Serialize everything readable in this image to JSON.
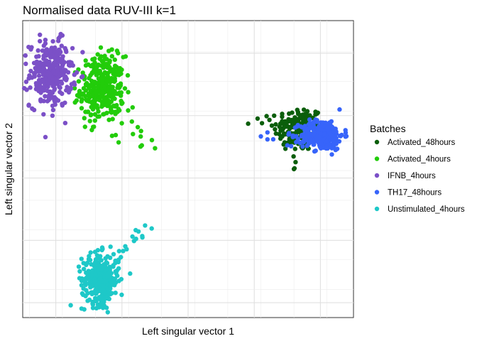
{
  "chart_data": {
    "type": "scatter",
    "title": "Normalised data RUV-III k=1",
    "xlabel": "Left singular vector 1",
    "ylabel": "Left singular vector 2",
    "xlim": [
      0,
      100
    ],
    "ylim": [
      0,
      100
    ],
    "grid": true,
    "ticks_labeled": false,
    "legend": {
      "title": "Batches",
      "placement": "right",
      "entries": [
        "Activated_48hours",
        "Activated_4hours",
        "IFNB_4hours",
        "TH17_48hours",
        "Unstimulated_4hours"
      ]
    },
    "series": [
      {
        "name": "Activated_48hours",
        "color": "#0B5E0B",
        "n": 160,
        "center": [
          83.5,
          63.5
        ],
        "spread": [
          3.8,
          3.8
        ],
        "tail": [
          [
            71,
            67
          ],
          [
            82,
            50
          ],
          [
            76,
            68
          ],
          [
            85,
            70
          ]
        ]
      },
      {
        "name": "Activated_4hours",
        "color": "#22CC0A",
        "n": 320,
        "center": [
          24,
          77
        ],
        "spread": [
          3.3,
          5.5
        ],
        "tail": [
          [
            36,
            58
          ],
          [
            40,
            57
          ],
          [
            27,
            88
          ],
          [
            33,
            66
          ],
          [
            29,
            59
          ]
        ]
      },
      {
        "name": "IFNB_4hours",
        "color": "#7B50C7",
        "n": 280,
        "center": [
          8.5,
          82
        ],
        "spread": [
          3.2,
          5.5
        ],
        "tail": [
          [
            12,
            95
          ],
          [
            14,
            85
          ],
          [
            9,
            68
          ],
          [
            5,
            77
          ]
        ]
      },
      {
        "name": "TH17_48hours",
        "color": "#3764FA",
        "n": 300,
        "center": [
          90.5,
          61.5
        ],
        "spread": [
          3.2,
          2.5
        ],
        "tail": [
          [
            74,
            60
          ],
          [
            72,
            61
          ],
          [
            80,
            58
          ]
        ]
      },
      {
        "name": "Unstimulated_4hours",
        "color": "#1EC8C8",
        "n": 320,
        "center": [
          23.5,
          13
        ],
        "spread": [
          2.8,
          4.2
        ],
        "tail": [
          [
            39,
            30
          ],
          [
            35,
            29
          ],
          [
            31,
            24
          ],
          [
            37,
            31
          ]
        ]
      }
    ]
  }
}
